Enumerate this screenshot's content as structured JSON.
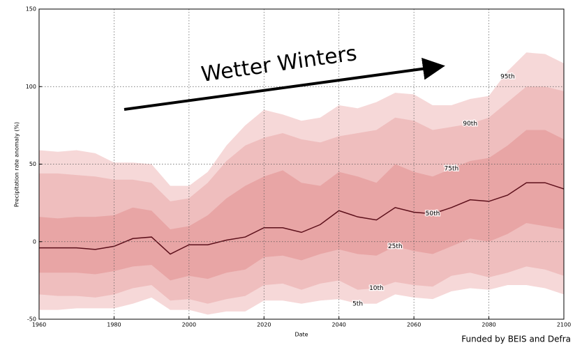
{
  "chart_data": {
    "type": "fan",
    "title": "Wetter Winters",
    "footer": "Funded by BEIS and Defra",
    "x_label": "Date",
    "y_label": "Precipitation rate anomaly (%)",
    "x": [
      1960,
      1965,
      1970,
      1975,
      1980,
      1985,
      1990,
      1995,
      2000,
      2005,
      2010,
      2015,
      2020,
      2025,
      2030,
      2035,
      2040,
      2045,
      2050,
      2055,
      2060,
      2065,
      2070,
      2075,
      2080,
      2085,
      2090,
      2095,
      2100
    ],
    "series": [
      {
        "name": "5th",
        "values": [
          -44,
          -44,
          -43,
          -43,
          -43,
          -40,
          -36,
          -44,
          -44,
          -47,
          -45,
          -45,
          -38,
          -38,
          -40,
          -38,
          -37,
          -40,
          -40,
          -34,
          -36,
          -37,
          -32,
          -30,
          -31,
          -28,
          -28,
          -30,
          -34
        ]
      },
      {
        "name": "10th",
        "values": [
          -34,
          -35,
          -35,
          -36,
          -34,
          -30,
          -28,
          -38,
          -37,
          -40,
          -37,
          -35,
          -28,
          -27,
          -31,
          -27,
          -25,
          -31,
          -30,
          -26,
          -28,
          -29,
          -22,
          -20,
          -23,
          -20,
          -16,
          -18,
          -22
        ]
      },
      {
        "name": "25th",
        "values": [
          -20,
          -20,
          -20,
          -21,
          -19,
          -16,
          -15,
          -25,
          -22,
          -24,
          -20,
          -18,
          -10,
          -9,
          -12,
          -8,
          -5,
          -8,
          -9,
          -3,
          -6,
          -8,
          -3,
          2,
          0,
          5,
          12,
          10,
          8
        ]
      },
      {
        "name": "50th",
        "color": "#5c0f1a",
        "values": [
          -4,
          -4,
          -4,
          -5,
          -3,
          2,
          3,
          -8,
          -2,
          -2,
          1,
          3,
          9,
          9,
          6,
          11,
          20,
          16,
          14,
          22,
          19,
          18,
          22,
          27,
          26,
          30,
          38,
          38,
          34
        ]
      },
      {
        "name": "75th",
        "values": [
          16,
          15,
          16,
          16,
          17,
          22,
          20,
          8,
          10,
          17,
          28,
          36,
          42,
          46,
          38,
          36,
          45,
          42,
          38,
          50,
          45,
          42,
          47,
          52,
          54,
          62,
          72,
          72,
          66
        ]
      },
      {
        "name": "90th",
        "values": [
          44,
          44,
          43,
          42,
          40,
          40,
          38,
          26,
          28,
          38,
          52,
          62,
          67,
          70,
          66,
          64,
          68,
          70,
          72,
          80,
          78,
          72,
          74,
          76,
          80,
          90,
          100,
          100,
          97
        ]
      },
      {
        "name": "95th",
        "values": [
          59,
          58,
          59,
          57,
          51,
          51,
          50,
          36,
          36,
          45,
          62,
          75,
          85,
          82,
          78,
          80,
          88,
          86,
          90,
          96,
          95,
          88,
          88,
          92,
          94,
          110,
          122,
          121,
          115
        ]
      }
    ],
    "band_colors": [
      "#f6d8d8",
      "#efbebe",
      "#e8a5a5"
    ],
    "xlim": [
      1960,
      2100
    ],
    "xticks": [
      1960,
      1980,
      2000,
      2020,
      2040,
      2060,
      2080,
      2100
    ],
    "ylim": [
      -50,
      150
    ],
    "yticks": [
      -50,
      0,
      50,
      100,
      150
    ],
    "grid": true
  }
}
